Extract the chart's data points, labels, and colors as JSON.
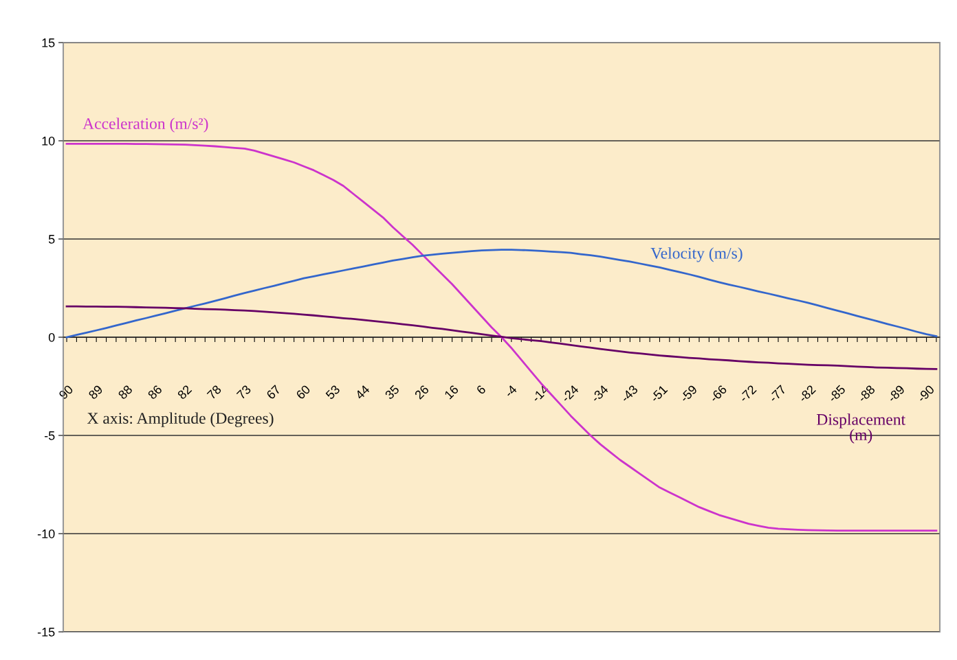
{
  "chart_data": {
    "type": "line",
    "categories": [
      "90",
      null,
      null,
      "89",
      null,
      null,
      "88",
      null,
      null,
      "86",
      null,
      null,
      "82",
      null,
      null,
      "78",
      null,
      null,
      "73",
      null,
      null,
      "67",
      null,
      null,
      "60",
      null,
      null,
      "53",
      null,
      null,
      "44",
      null,
      null,
      "35",
      null,
      null,
      "26",
      null,
      null,
      "16",
      null,
      null,
      "6",
      null,
      null,
      "-4",
      null,
      null,
      "-14",
      null,
      null,
      "-24",
      null,
      null,
      "-34",
      null,
      null,
      "-43",
      null,
      null,
      "-51",
      null,
      null,
      "-59",
      null,
      null,
      "-66",
      null,
      null,
      "-72",
      null,
      null,
      "-77",
      null,
      null,
      "-82",
      null,
      null,
      "-85",
      null,
      null,
      "-88",
      null,
      null,
      "-89",
      null,
      null,
      "-90",
      null
    ],
    "series": [
      {
        "name": "Acceleration (m/s²)",
        "color": "#cc33cc",
        "values": [
          9.85,
          9.85,
          9.85,
          9.85,
          9.85,
          9.85,
          9.85,
          9.84,
          9.84,
          9.83,
          9.82,
          9.81,
          9.8,
          9.78,
          9.75,
          9.72,
          9.68,
          9.64,
          9.6,
          9.5,
          9.35,
          9.2,
          9.05,
          8.9,
          8.7,
          8.5,
          8.25,
          8.0,
          7.7,
          7.3,
          6.9,
          6.5,
          6.1,
          5.6,
          5.15,
          4.7,
          4.2,
          3.7,
          3.2,
          2.7,
          2.15,
          1.6,
          1.05,
          0.5,
          0.0,
          -0.55,
          -1.15,
          -1.75,
          -2.35,
          -2.9,
          -3.45,
          -4.0,
          -4.5,
          -5.0,
          -5.45,
          -5.85,
          -6.25,
          -6.6,
          -6.95,
          -7.3,
          -7.65,
          -7.9,
          -8.15,
          -8.4,
          -8.65,
          -8.85,
          -9.05,
          -9.2,
          -9.35,
          -9.5,
          -9.6,
          -9.7,
          -9.75,
          -9.78,
          -9.8,
          -9.82,
          -9.83,
          -9.84,
          -9.85,
          -9.85,
          -9.85,
          -9.85,
          -9.85,
          -9.85,
          -9.85,
          -9.85,
          -9.85,
          -9.85,
          -9.85
        ]
      },
      {
        "name": "Velocity (m/s)",
        "color": "#3366cc",
        "values": [
          0,
          0.12,
          0.23,
          0.35,
          0.47,
          0.6,
          0.72,
          0.85,
          0.97,
          1.1,
          1.22,
          1.35,
          1.47,
          1.6,
          1.72,
          1.85,
          1.98,
          2.12,
          2.25,
          2.37,
          2.5,
          2.62,
          2.75,
          2.87,
          3.0,
          3.1,
          3.2,
          3.3,
          3.4,
          3.5,
          3.6,
          3.7,
          3.8,
          3.9,
          3.98,
          4.07,
          4.15,
          4.2,
          4.25,
          4.3,
          4.34,
          4.38,
          4.42,
          4.44,
          4.45,
          4.45,
          4.44,
          4.42,
          4.39,
          4.36,
          4.33,
          4.3,
          4.23,
          4.17,
          4.1,
          4.02,
          3.93,
          3.85,
          3.75,
          3.65,
          3.55,
          3.43,
          3.32,
          3.2,
          3.07,
          2.93,
          2.8,
          2.68,
          2.57,
          2.45,
          2.33,
          2.22,
          2.1,
          1.98,
          1.87,
          1.75,
          1.62,
          1.48,
          1.35,
          1.22,
          1.08,
          0.95,
          0.82,
          0.68,
          0.55,
          0.42,
          0.28,
          0.15,
          0.05
        ]
      },
      {
        "name": "Displacement\n(m)",
        "color": "#660066",
        "values": [
          1.57,
          1.57,
          1.56,
          1.56,
          1.55,
          1.55,
          1.54,
          1.53,
          1.52,
          1.51,
          1.5,
          1.48,
          1.47,
          1.45,
          1.43,
          1.42,
          1.4,
          1.38,
          1.36,
          1.33,
          1.3,
          1.26,
          1.23,
          1.19,
          1.15,
          1.11,
          1.06,
          1.02,
          0.97,
          0.93,
          0.88,
          0.83,
          0.77,
          0.72,
          0.66,
          0.61,
          0.55,
          0.48,
          0.42,
          0.35,
          0.28,
          0.22,
          0.15,
          0.08,
          0.02,
          -0.05,
          -0.1,
          -0.15,
          -0.2,
          -0.27,
          -0.33,
          -0.4,
          -0.47,
          -0.53,
          -0.6,
          -0.66,
          -0.72,
          -0.78,
          -0.83,
          -0.88,
          -0.93,
          -0.97,
          -1.01,
          -1.05,
          -1.08,
          -1.12,
          -1.15,
          -1.18,
          -1.22,
          -1.25,
          -1.28,
          -1.3,
          -1.33,
          -1.35,
          -1.38,
          -1.4,
          -1.42,
          -1.43,
          -1.45,
          -1.47,
          -1.5,
          -1.52,
          -1.54,
          -1.55,
          -1.57,
          -1.58,
          -1.6,
          -1.61,
          -1.62
        ]
      }
    ],
    "ylim": [
      -15,
      15
    ],
    "yticks": [
      -15,
      -10,
      -5,
      0,
      5,
      10,
      15
    ],
    "grid": "y",
    "legend": false,
    "marker": "none",
    "line_style": "solid",
    "annotations": [
      "X axis: Amplitude (Degrees)"
    ]
  }
}
